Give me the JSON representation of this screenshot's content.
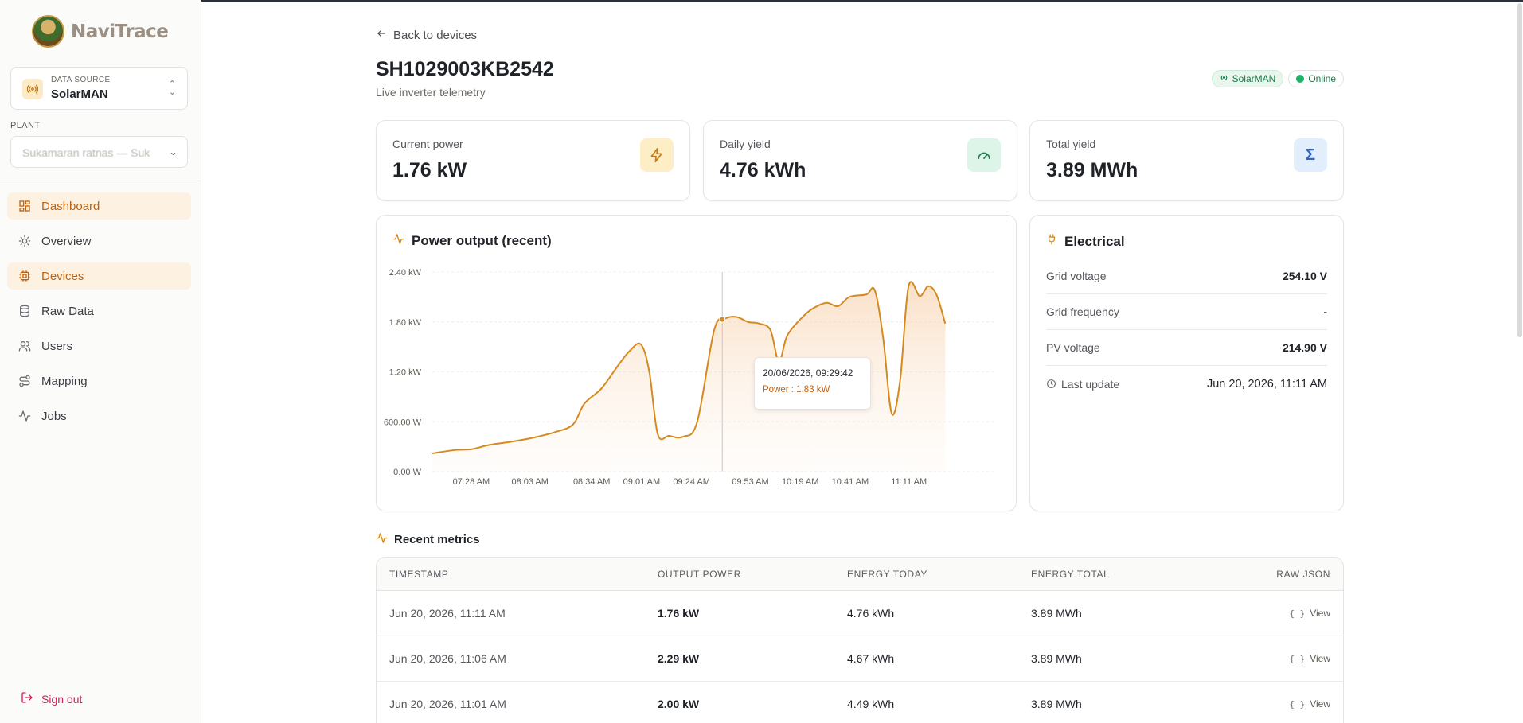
{
  "app": {
    "name": "NaviTrace"
  },
  "sidebar": {
    "data_source_caption": "DATA SOURCE",
    "data_source_value": "SolarMAN",
    "plant_label": "PLANT",
    "plant_placeholder": "Sukamaran ratnas — Suk",
    "items": [
      {
        "label": "Dashboard",
        "icon": "dashboard-icon"
      },
      {
        "label": "Overview",
        "icon": "sun-icon"
      },
      {
        "label": "Devices",
        "icon": "chip-icon"
      },
      {
        "label": "Raw Data",
        "icon": "database-icon"
      },
      {
        "label": "Users",
        "icon": "users-icon"
      },
      {
        "label": "Mapping",
        "icon": "route-icon"
      },
      {
        "label": "Jobs",
        "icon": "activity-icon"
      }
    ],
    "sign_out": "Sign out"
  },
  "header": {
    "back_label": "Back to devices",
    "device_id": "SH1029003KB2542",
    "subtitle": "Live inverter telemetry",
    "source_badge": "SolarMAN",
    "status_badge": "Online"
  },
  "stats": [
    {
      "label": "Current power",
      "value": "1.76 kW",
      "icon": "bolt-icon"
    },
    {
      "label": "Daily yield",
      "value": "4.76 kWh",
      "icon": "gauge-icon"
    },
    {
      "label": "Total yield",
      "value": "3.89 MWh",
      "icon": "sigma-icon"
    }
  ],
  "power_chart": {
    "title": "Power output (recent)",
    "tooltip": {
      "time": "20/06/2026, 09:29:42",
      "text": "Power : 1.83 kW"
    }
  },
  "chart_data": {
    "type": "area",
    "title": "Power output (recent)",
    "ylim": [
      0,
      2.4
    ],
    "y_ticks": [
      "0.00 W",
      "600.00 W",
      "1.20 kW",
      "1.80 kW",
      "2.40 kW"
    ],
    "x_ticks": [
      "07:28 AM",
      "08:03 AM",
      "08:34 AM",
      "09:01 AM",
      "09:24 AM",
      "09:53 AM",
      "10:19 AM",
      "10:41 AM",
      "11:11 AM"
    ],
    "series": [
      {
        "unit": "kW",
        "points": [
          [
            0.0,
            0.22
          ],
          [
            0.04,
            0.26
          ],
          [
            0.07,
            0.27
          ],
          [
            0.1,
            0.32
          ],
          [
            0.14,
            0.36
          ],
          [
            0.18,
            0.41
          ],
          [
            0.22,
            0.48
          ],
          [
            0.25,
            0.57
          ],
          [
            0.27,
            0.82
          ],
          [
            0.3,
            1.0
          ],
          [
            0.33,
            1.28
          ],
          [
            0.35,
            1.45
          ],
          [
            0.37,
            1.53
          ],
          [
            0.385,
            1.2
          ],
          [
            0.4,
            0.45
          ],
          [
            0.42,
            0.43
          ],
          [
            0.445,
            0.42
          ],
          [
            0.47,
            0.6
          ],
          [
            0.5,
            1.7
          ],
          [
            0.52,
            1.84
          ],
          [
            0.54,
            1.86
          ],
          [
            0.56,
            1.8
          ],
          [
            0.58,
            1.78
          ],
          [
            0.6,
            1.7
          ],
          [
            0.615,
            1.32
          ],
          [
            0.63,
            1.64
          ],
          [
            0.66,
            1.88
          ],
          [
            0.68,
            1.98
          ],
          [
            0.7,
            2.03
          ],
          [
            0.72,
            1.99
          ],
          [
            0.74,
            2.1
          ],
          [
            0.77,
            2.13
          ],
          [
            0.785,
            2.18
          ],
          [
            0.8,
            1.6
          ],
          [
            0.815,
            0.7
          ],
          [
            0.83,
            1.1
          ],
          [
            0.845,
            2.23
          ],
          [
            0.865,
            2.11
          ],
          [
            0.88,
            2.23
          ],
          [
            0.895,
            2.12
          ],
          [
            0.91,
            1.78
          ]
        ],
        "color": "#d48a1e"
      }
    ],
    "highlight": {
      "label": "20/06/2026, 09:29:42",
      "value": 1.83
    }
  },
  "electrical": {
    "title": "Electrical",
    "rows": [
      {
        "key": "Grid voltage",
        "value": "254.10 V"
      },
      {
        "key": "Grid frequency",
        "value": "-"
      },
      {
        "key": "PV voltage",
        "value": "214.90 V"
      },
      {
        "key": "Last update",
        "value": "Jun 20, 2026, 11:11 AM"
      }
    ]
  },
  "recent_metrics": {
    "title": "Recent metrics",
    "columns": [
      "TIMESTAMP",
      "OUTPUT POWER",
      "ENERGY TODAY",
      "ENERGY TOTAL",
      "RAW JSON"
    ],
    "rows": [
      {
        "timestamp": "Jun 20, 2026, 11:11 AM",
        "power": "1.76 kW",
        "today": "4.76 kWh",
        "total": "3.89 MWh",
        "raw": "View"
      },
      {
        "timestamp": "Jun 20, 2026, 11:06 AM",
        "power": "2.29 kW",
        "today": "4.67 kWh",
        "total": "3.89 MWh",
        "raw": "View"
      },
      {
        "timestamp": "Jun 20, 2026, 11:01 AM",
        "power": "2.00 kW",
        "today": "4.49 kWh",
        "total": "3.89 MWh",
        "raw": "View"
      }
    ],
    "raw_glyph": "{ }"
  },
  "colors": {
    "accent": "#c2620e",
    "chart_line": "#d48a1e",
    "online": "#22b46b",
    "sign_out": "#d21f57"
  }
}
